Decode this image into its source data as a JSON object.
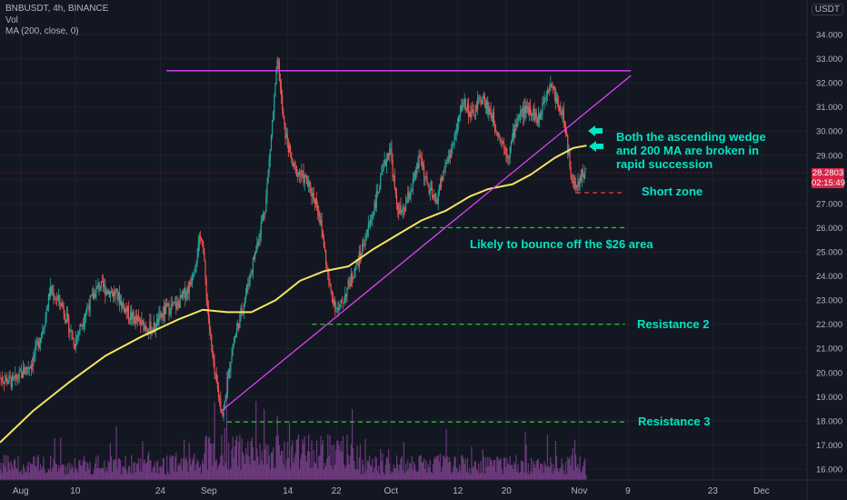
{
  "header": {
    "symbol_line": "BNBUSDT, 4h, BINANCE",
    "volume_label": "Vol",
    "ma_label": "MA (200, close, 0)",
    "currency_badge": "USDT"
  },
  "price_tags": {
    "last_price": "28.2803",
    "countdown": "02:15:49"
  },
  "annotations": {
    "wedge_broken": "Both the ascending wedge and 200 MA are broken in rapid succession",
    "short_zone": "Short zone",
    "bounce_26": "Likely to bounce off the $26 area",
    "resistance_2": "Resistance 2",
    "resistance_3": "Resistance 3"
  },
  "colors": {
    "background": "#131722",
    "grid": "#1e222d",
    "up_candle": "#26a69a",
    "down_candle": "#ef5350",
    "ma": "#f5e663",
    "volume": "#7b3f8c",
    "wedge_line": "#e040fb",
    "green_levels": "#2eb82e",
    "short_level": "#e53935",
    "annotation_text": "#00e5c3"
  },
  "chart_data": {
    "type": "candlestick",
    "title": "BNBUSDT, 4h, BINANCE",
    "y_ticks": [
      16,
      17,
      18,
      19,
      20,
      21,
      22,
      23,
      24,
      25,
      26,
      27,
      28,
      29,
      30,
      31,
      32,
      33,
      34
    ],
    "ylim": [
      15.6,
      34.8
    ],
    "x_ticks": [
      {
        "day": 0,
        "label": "Aug"
      },
      {
        "day": 9,
        "label": "10"
      },
      {
        "day": 23,
        "label": "24"
      },
      {
        "day": 31,
        "label": "Sep"
      },
      {
        "day": 44,
        "label": "14"
      },
      {
        "day": 52,
        "label": "22"
      },
      {
        "day": 61,
        "label": "Oct"
      },
      {
        "day": 72,
        "label": "12"
      },
      {
        "day": 80,
        "label": "20"
      },
      {
        "day": 92,
        "label": "Nov"
      },
      {
        "day": 100,
        "label": "9"
      },
      {
        "day": 114,
        "label": "23"
      },
      {
        "day": 122,
        "label": "Dec"
      }
    ],
    "xlim": [
      -3.4,
      129.5
    ],
    "price_path": [
      [
        -3.4,
        19.8
      ],
      [
        -1,
        19.6
      ],
      [
        2,
        20.4
      ],
      [
        4,
        22.0
      ],
      [
        5,
        23.4
      ],
      [
        7,
        22.8
      ],
      [
        9,
        21.2
      ],
      [
        11,
        22.6
      ],
      [
        13,
        23.6
      ],
      [
        16,
        23.2
      ],
      [
        18,
        22.4
      ],
      [
        20,
        22.0
      ],
      [
        22,
        21.8
      ],
      [
        24,
        22.6
      ],
      [
        26,
        22.8
      ],
      [
        28,
        23.6
      ],
      [
        30,
        25.8
      ],
      [
        31,
        22.5
      ],
      [
        32,
        20.0
      ],
      [
        33.5,
        18.2
      ],
      [
        35,
        21.0
      ],
      [
        37,
        23.0
      ],
      [
        39,
        25.2
      ],
      [
        40.5,
        27.0
      ],
      [
        41.5,
        30.0
      ],
      [
        42.5,
        33.0
      ],
      [
        43.5,
        30.2
      ],
      [
        45,
        28.5
      ],
      [
        47,
        28.0
      ],
      [
        49,
        27.0
      ],
      [
        50,
        25.5
      ],
      [
        51,
        23.5
      ],
      [
        52.5,
        22.5
      ],
      [
        54,
        23.5
      ],
      [
        56,
        24.8
      ],
      [
        58,
        26.5
      ],
      [
        60,
        28.5
      ],
      [
        61,
        29.4
      ],
      [
        62,
        27.0
      ],
      [
        63,
        26.5
      ],
      [
        65,
        28.0
      ],
      [
        66,
        29.0
      ],
      [
        67,
        27.8
      ],
      [
        68.5,
        27.0
      ],
      [
        70,
        28.5
      ],
      [
        71.5,
        29.5
      ],
      [
        73,
        31.3
      ],
      [
        74.5,
        30.6
      ],
      [
        76,
        31.4
      ],
      [
        77.5,
        30.8
      ],
      [
        79,
        29.8
      ],
      [
        80.5,
        29.0
      ],
      [
        82,
        30.6
      ],
      [
        84,
        31.0
      ],
      [
        85.5,
        30.4
      ],
      [
        86.5,
        31.6
      ],
      [
        87.5,
        32.0
      ],
      [
        88.5,
        31.2
      ],
      [
        89.5,
        30.7
      ],
      [
        90.5,
        28.8
      ],
      [
        91.5,
        27.5
      ],
      [
        92.5,
        28.2
      ],
      [
        93.2,
        28.3
      ]
    ],
    "ma_path": [
      [
        -3.4,
        17.1
      ],
      [
        2,
        18.4
      ],
      [
        8,
        19.6
      ],
      [
        14,
        20.7
      ],
      [
        20,
        21.5
      ],
      [
        26,
        22.2
      ],
      [
        30,
        22.6
      ],
      [
        34,
        22.5
      ],
      [
        38,
        22.5
      ],
      [
        42,
        23.0
      ],
      [
        46,
        23.8
      ],
      [
        50,
        24.2
      ],
      [
        54,
        24.4
      ],
      [
        58,
        25.1
      ],
      [
        62,
        25.7
      ],
      [
        66,
        26.3
      ],
      [
        70,
        26.7
      ],
      [
        74,
        27.3
      ],
      [
        77,
        27.6
      ],
      [
        81,
        27.8
      ],
      [
        84,
        28.2
      ],
      [
        88,
        28.9
      ],
      [
        91,
        29.3
      ],
      [
        93.2,
        29.4
      ]
    ],
    "wedge_upper": [
      [
        24,
        32.5
      ],
      [
        100.5,
        32.5
      ]
    ],
    "wedge_lower": [
      [
        33,
        18.4
      ],
      [
        100.5,
        32.3
      ]
    ],
    "levels": [
      {
        "name": "short-zone",
        "y": 27.45,
        "x": [
          91.5,
          99.5
        ],
        "color": "#e53935"
      },
      {
        "name": "bounce-26",
        "y": 26.0,
        "x": [
          65,
          99.5
        ],
        "color": "#2eb82e"
      },
      {
        "name": "resistance-2",
        "y": 22.0,
        "x": [
          48,
          99.5
        ],
        "color": "#2eb82e"
      },
      {
        "name": "resistance-3",
        "y": 17.95,
        "x": [
          34,
          99.5
        ],
        "color": "#2eb82e"
      }
    ],
    "volume_max": 1.0
  }
}
